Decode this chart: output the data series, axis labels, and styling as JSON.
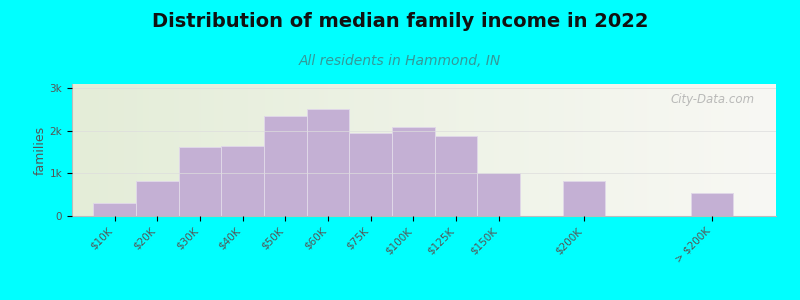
{
  "title": "Distribution of median family income in 2022",
  "subtitle": "All residents in Hammond, IN",
  "ylabel": "families",
  "background_outer": "#00FFFF",
  "background_inner_left": "#e4edd8",
  "background_inner_right": "#f8f8f4",
  "bar_color": "#c4b0d4",
  "bar_edge_color": "#e0d8e8",
  "categories": [
    "$10K",
    "$20K",
    "$30K",
    "$40K",
    "$50K",
    "$60K",
    "$75K",
    "$100K",
    "$125K",
    "$150K",
    "$200K",
    "> $200K"
  ],
  "values": [
    300,
    830,
    1620,
    1650,
    2350,
    2520,
    1950,
    2100,
    1880,
    1020,
    830,
    530
  ],
  "bar_widths": [
    1,
    1,
    1,
    1,
    1,
    1,
    1,
    1,
    1,
    1,
    1,
    1
  ],
  "bar_positions": [
    0,
    1,
    2,
    3,
    4,
    5,
    6,
    7,
    8,
    9,
    11,
    14
  ],
  "yticks": [
    0,
    1000,
    2000,
    3000
  ],
  "ytick_labels": [
    "0",
    "1k",
    "2k",
    "3k"
  ],
  "ylim": [
    0,
    3100
  ],
  "xlim": [
    -0.5,
    16
  ],
  "watermark": "City-Data.com",
  "title_fontsize": 14,
  "subtitle_fontsize": 10,
  "ylabel_fontsize": 9,
  "tick_fontsize": 7.5
}
